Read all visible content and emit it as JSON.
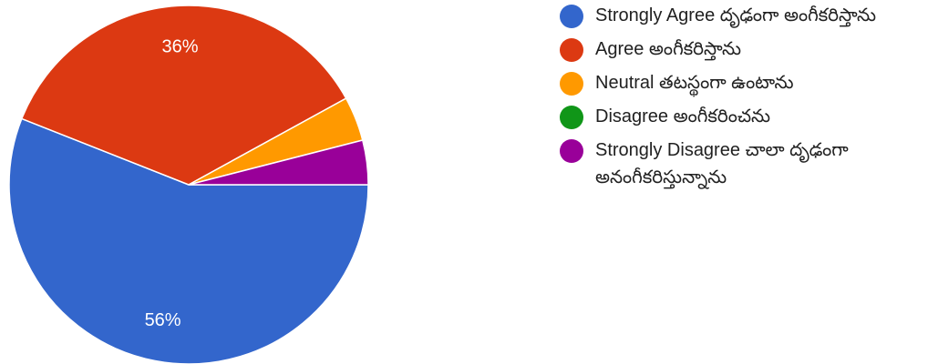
{
  "chart_data": {
    "type": "pie",
    "categories": [
      "Strongly Agree దృఢంగా అంగీకరిస్తాను",
      "Agree అంగీకరిస్తాను",
      "Neutral తటస్థంగా ఉంటాను",
      "Disagree అంగీకరించను",
      "Strongly Disagree చాలా దృఢంగా అనంగీకరిస్తున్నాను"
    ],
    "values": [
      56,
      36,
      4,
      0,
      4
    ],
    "slice_labels": [
      "56%",
      "36%",
      "",
      "",
      ""
    ],
    "colors": [
      "#3366cc",
      "#dc3912",
      "#ff9900",
      "#109618",
      "#990099"
    ],
    "legend_position": "right",
    "title": ""
  }
}
